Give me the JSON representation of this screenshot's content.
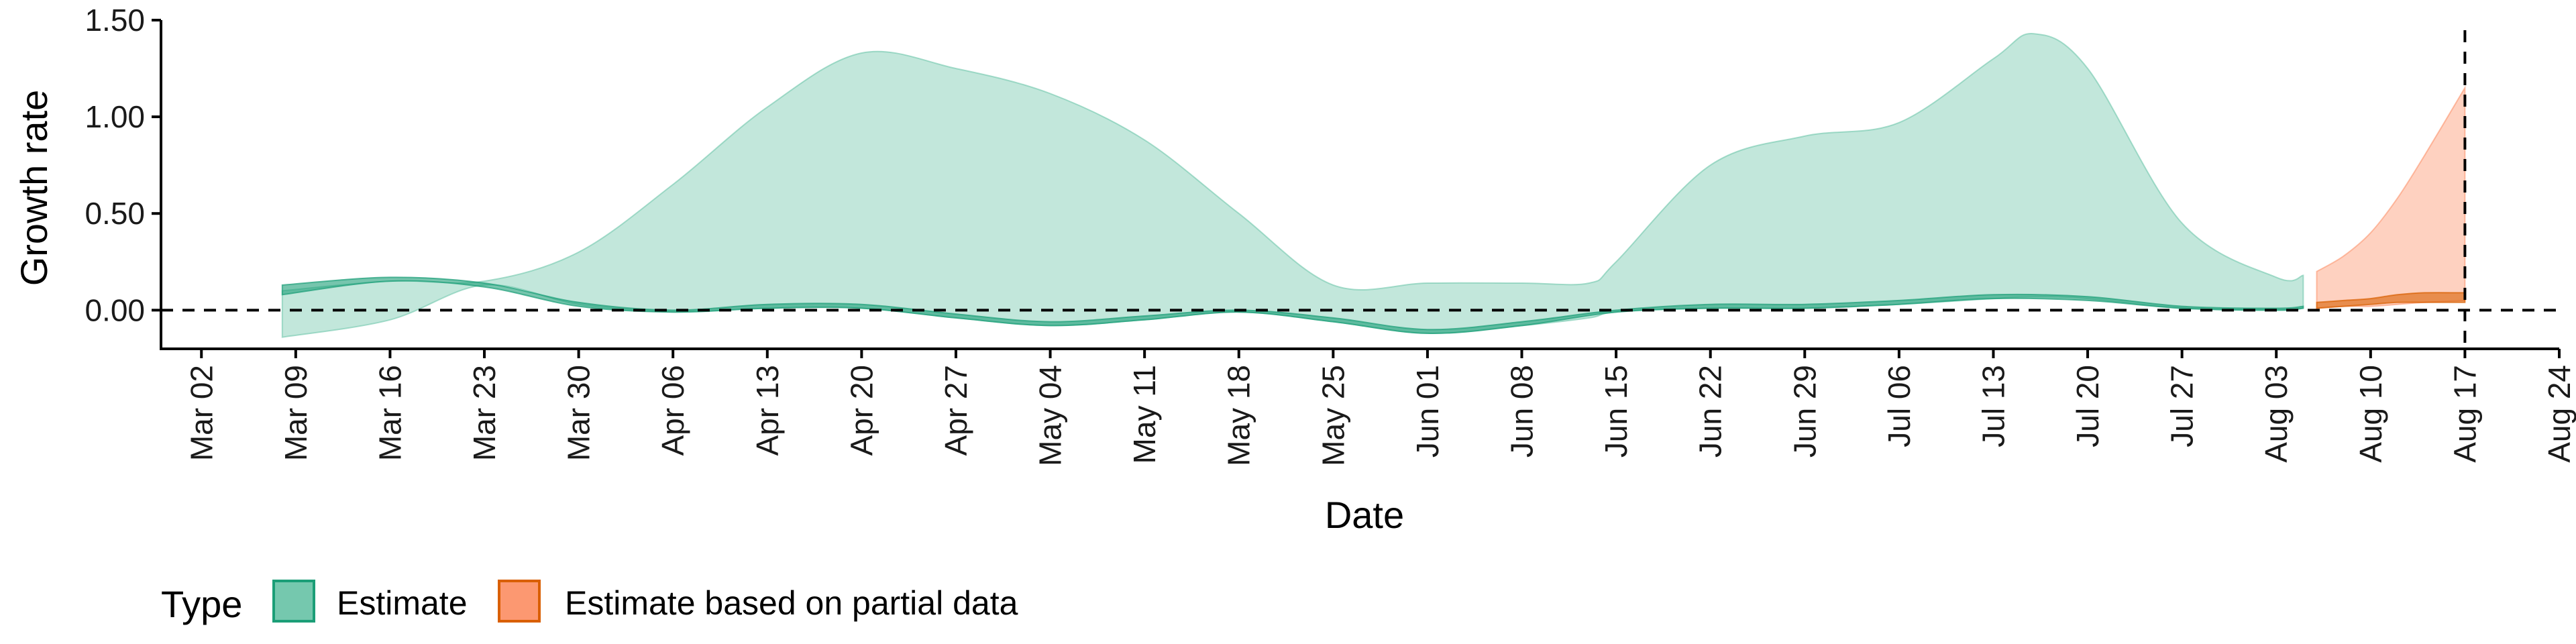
{
  "chart_data": {
    "type": "area",
    "xlabel": "Date",
    "ylabel": "Growth rate",
    "xlim": [
      "2020-02-28",
      "2020-08-24"
    ],
    "ylim": [
      -0.2,
      1.5
    ],
    "x_ticks": [
      "2020-03-02",
      "2020-03-09",
      "2020-03-16",
      "2020-03-23",
      "2020-03-30",
      "2020-04-06",
      "2020-04-13",
      "2020-04-20",
      "2020-04-27",
      "2020-05-04",
      "2020-05-11",
      "2020-05-18",
      "2020-05-25",
      "2020-06-01",
      "2020-06-08",
      "2020-06-15",
      "2020-06-22",
      "2020-06-29",
      "2020-07-06",
      "2020-07-13",
      "2020-07-20",
      "2020-07-27",
      "2020-08-03",
      "2020-08-10",
      "2020-08-17",
      "2020-08-24"
    ],
    "x_tick_labels": [
      "Mar 02",
      "Mar 09",
      "Mar 16",
      "Mar 23",
      "Mar 30",
      "Apr 06",
      "Apr 13",
      "Apr 20",
      "Apr 27",
      "May 04",
      "May 11",
      "May 18",
      "May 25",
      "Jun 01",
      "Jun 08",
      "Jun 15",
      "Jun 22",
      "Jun 29",
      "Jul 06",
      "Jul 13",
      "Jul 20",
      "Jul 27",
      "Aug 03",
      "Aug 10",
      "Aug 17",
      "Aug 24"
    ],
    "y_ticks": [
      0,
      0.5,
      1.0,
      1.5
    ],
    "y_tick_labels": [
      "0.00",
      "0.50",
      "1.00",
      "1.50"
    ],
    "reference_lines": {
      "horizontal_y": 0,
      "vertical_x": "2020-08-17"
    },
    "grid": false,
    "legend_position": "bottom-left",
    "legend_title": "Type",
    "series": [
      {
        "name": "Estimate",
        "color_fill": "#66c2a5",
        "color_line": "#1b9e77",
        "outer_x": [
          "2020-03-08",
          "2020-03-16",
          "2020-03-23",
          "2020-03-30",
          "2020-04-06",
          "2020-04-13",
          "2020-04-20",
          "2020-04-27",
          "2020-05-04",
          "2020-05-11",
          "2020-05-18",
          "2020-05-25",
          "2020-06-01",
          "2020-06-08",
          "2020-06-13",
          "2020-06-15",
          "2020-06-22",
          "2020-06-29",
          "2020-07-06",
          "2020-07-13",
          "2020-07-16",
          "2020-07-20",
          "2020-07-27",
          "2020-08-03",
          "2020-08-05"
        ],
        "outer_upper": [
          0.1,
          0.15,
          0.15,
          0.3,
          0.65,
          1.05,
          1.33,
          1.25,
          1.12,
          0.88,
          0.5,
          0.13,
          0.14,
          0.14,
          0.14,
          0.25,
          0.75,
          0.9,
          0.97,
          1.3,
          1.43,
          1.25,
          0.45,
          0.17,
          0.18
        ],
        "outer_lower": [
          -0.14,
          -0.05,
          0.13,
          0.03,
          -0.01,
          0.01,
          0.01,
          -0.04,
          -0.08,
          -0.05,
          -0.01,
          -0.06,
          -0.12,
          -0.08,
          -0.04,
          -0.01,
          0.01,
          0.01,
          0.03,
          0.06,
          0.07,
          0.06,
          0.01,
          0.0,
          0.01
        ],
        "inner_x": [
          "2020-03-08",
          "2020-03-16",
          "2020-03-23",
          "2020-03-30",
          "2020-04-06",
          "2020-04-13",
          "2020-04-20",
          "2020-04-27",
          "2020-05-04",
          "2020-05-11",
          "2020-05-18",
          "2020-05-25",
          "2020-06-01",
          "2020-06-08",
          "2020-06-15",
          "2020-06-22",
          "2020-06-29",
          "2020-07-06",
          "2020-07-13",
          "2020-07-20",
          "2020-07-27",
          "2020-08-03",
          "2020-08-05"
        ],
        "inner_upper": [
          0.13,
          0.17,
          0.14,
          0.04,
          0.0,
          0.03,
          0.03,
          -0.02,
          -0.06,
          -0.03,
          0.0,
          -0.04,
          -0.1,
          -0.06,
          0.0,
          0.03,
          0.03,
          0.05,
          0.08,
          0.07,
          0.02,
          0.01,
          0.02
        ],
        "inner_lower": [
          0.08,
          0.15,
          0.12,
          0.02,
          -0.01,
          0.01,
          0.01,
          -0.04,
          -0.08,
          -0.05,
          -0.01,
          -0.06,
          -0.12,
          -0.08,
          -0.01,
          0.01,
          0.01,
          0.03,
          0.06,
          0.05,
          0.01,
          0.0,
          0.01
        ]
      },
      {
        "name": "Estimate based on partial data",
        "color_fill": "#fc8d62",
        "color_line": "#d95f02",
        "outer_x": [
          "2020-08-06",
          "2020-08-08",
          "2020-08-10",
          "2020-08-12",
          "2020-08-14",
          "2020-08-17"
        ],
        "outer_upper": [
          0.2,
          0.28,
          0.4,
          0.58,
          0.8,
          1.15
        ],
        "outer_lower": [
          0.01,
          0.02,
          0.02,
          0.03,
          0.04,
          0.05
        ],
        "inner_x": [
          "2020-08-06",
          "2020-08-08",
          "2020-08-10",
          "2020-08-12",
          "2020-08-14",
          "2020-08-17"
        ],
        "inner_upper": [
          0.04,
          0.05,
          0.06,
          0.08,
          0.09,
          0.09
        ],
        "inner_lower": [
          0.01,
          0.02,
          0.03,
          0.04,
          0.04,
          0.04
        ]
      }
    ]
  }
}
